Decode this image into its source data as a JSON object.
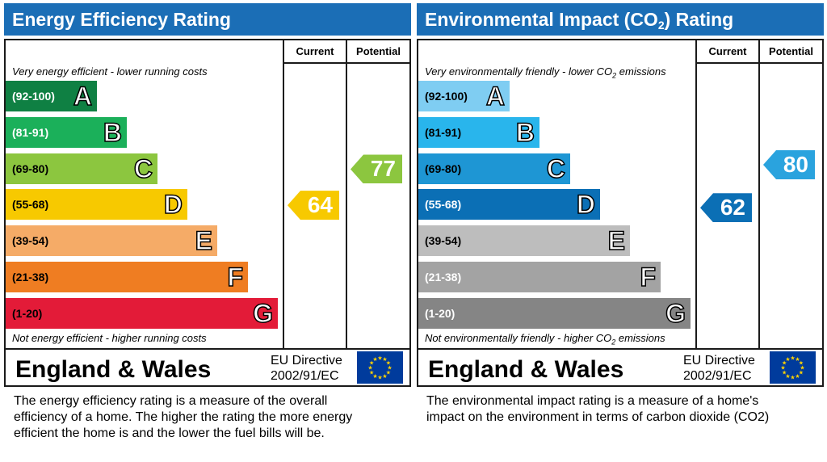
{
  "energy": {
    "title": "Energy Efficiency Rating",
    "col_current": "Current",
    "col_potential": "Potential",
    "top_note": "Very energy efficient - lower running costs",
    "bottom_note": "Not energy efficient - higher running costs",
    "region": "England & Wales",
    "directive": "EU Directive\n2002/91/EC",
    "caption": "The energy efficiency rating is a measure of the overall\nefficiency of a home.  The higher the rating the more energy\nefficient the home is and the lower the fuel bills will be.",
    "current_color": "#f7c900",
    "potential_color": "#8cc63f"
  },
  "environment": {
    "title_prefix": "Environmental Impact (CO",
    "title_sub": "2",
    "title_suffix": ") Rating",
    "col_current": "Current",
    "col_potential": "Potential",
    "top_note_prefix": "Very environmentally friendly - lower CO",
    "top_note_sub": "2",
    "top_note_suffix": " emissions",
    "bottom_note_prefix": "Not environmentally friendly - higher CO",
    "bottom_note_sub": "2",
    "bottom_note_suffix": " emissions",
    "region": "England & Wales",
    "directive": "EU Directive\n2002/91/EC",
    "caption": "The environmental impact rating is a measure of a home's\nimpact on the environment in terms of carbon dioxide (CO2)",
    "current_color": "#0b6fb5",
    "potential_color": "#2aa3de"
  },
  "chart_data": [
    {
      "type": "bar",
      "title": "Energy Efficiency Rating",
      "categories": [
        "A",
        "B",
        "C",
        "D",
        "E",
        "F",
        "G"
      ],
      "ranges": [
        "(92-100)",
        "(81-91)",
        "(69-80)",
        "(55-68)",
        "(39-54)",
        "(21-38)",
        "(1-20)"
      ],
      "colors": [
        "#0f8043",
        "#1bb05a",
        "#8cc63f",
        "#f7c900",
        "#f5ab67",
        "#ef7d22",
        "#e31b38"
      ],
      "current": 64,
      "potential": 77
    },
    {
      "type": "bar",
      "title": "Environmental Impact (CO2) Rating",
      "categories": [
        "A",
        "B",
        "C",
        "D",
        "E",
        "F",
        "G"
      ],
      "ranges": [
        "(92-100)",
        "(81-91)",
        "(69-80)",
        "(55-68)",
        "(39-54)",
        "(21-38)",
        "(1-20)"
      ],
      "colors": [
        "#7fcdf2",
        "#29b5ec",
        "#1e96d4",
        "#0b6fb5",
        "#bdbdbd",
        "#a3a3a3",
        "#858585"
      ],
      "current": 62,
      "potential": 80
    }
  ]
}
